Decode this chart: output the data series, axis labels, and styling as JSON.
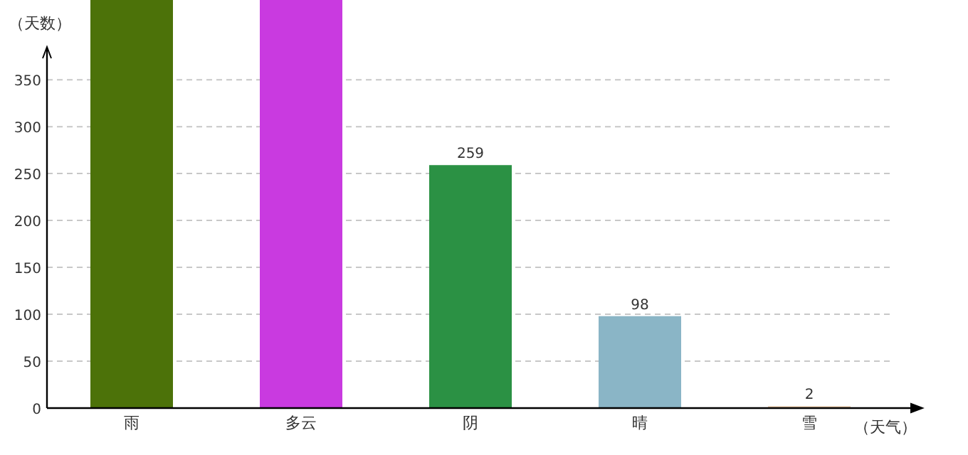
{
  "chart_data": {
    "type": "bar",
    "ylabel": "（天数）",
    "xlabel": "（天气）",
    "categories": [
      "雨",
      "多云",
      "阴",
      "晴",
      "雪"
    ],
    "values": [
      435,
      435,
      259,
      98,
      2
    ],
    "colors": [
      "#4c7209",
      "#c93ae0",
      "#2b9144",
      "#8ab5c6",
      "#e8c9a8"
    ],
    "value_labels": [
      null,
      null,
      "259",
      "98",
      "2"
    ],
    "ylim": [
      0,
      435
    ],
    "yticks": [
      0,
      50,
      100,
      150,
      200,
      250,
      300,
      350
    ],
    "grid": "y"
  }
}
